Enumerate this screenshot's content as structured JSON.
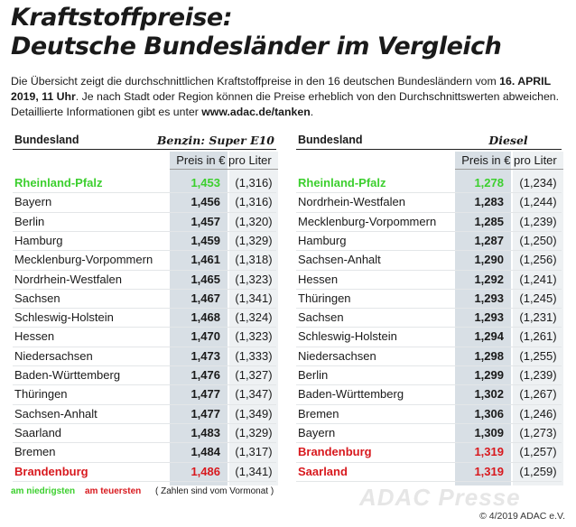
{
  "header": {
    "title": [
      "Kraftstoffpreise:",
      "Deutsche Bundesländer im Vergleich"
    ],
    "intro": [
      "Die Übersicht zeigt die durchschnittlichen Kraftstoffpreise in den 16 deutschen Bundesländern vom ",
      "16. APRIL 2019, 11 Uhr",
      ". Je nach Stadt oder Region können die Preise erheblich von den Durchschnittswerten abweichen. Detaillierte Informationen gibt es unter ",
      "www.adac.de/tanken",
      "."
    ]
  },
  "tables": [
    {
      "headers": [
        "Bundesland",
        "Benzin: Super E10"
      ],
      "unit": "Preis in € pro Liter",
      "rows": [
        [
          "Rheinland-Pfalz",
          "1,453",
          "(1,316)"
        ],
        [
          "Bayern",
          "1,456",
          "(1,316)"
        ],
        [
          "Berlin",
          "1,457",
          "(1,320)"
        ],
        [
          "Hamburg",
          "1,459",
          "(1,329)"
        ],
        [
          "Mecklenburg-Vorpommern",
          "1,461",
          "(1,318)"
        ],
        [
          "Nordrhein-Westfalen",
          "1,465",
          "(1,323)"
        ],
        [
          "Sachsen",
          "1,467",
          "(1,341)"
        ],
        [
          "Schleswig-Holstein",
          "1,468",
          "(1,324)"
        ],
        [
          "Hessen",
          "1,470",
          "(1,323)"
        ],
        [
          "Niedersachsen",
          "1,473",
          "(1,333)"
        ],
        [
          "Baden-Württemberg",
          "1,476",
          "(1,327)"
        ],
        [
          "Thüringen",
          "1,477",
          "(1,347)"
        ],
        [
          "Sachsen-Anhalt",
          "1,477",
          "(1,349)"
        ],
        [
          "Saarland",
          "1,483",
          "(1,329)"
        ],
        [
          "Bremen",
          "1,484",
          "(1,317)"
        ],
        [
          "Brandenburg",
          "1,486",
          "(1,341)"
        ]
      ]
    },
    {
      "headers": [
        "Bundesland",
        "Diesel"
      ],
      "unit": "Preis in € pro Liter",
      "rows": [
        [
          "Rheinland-Pfalz",
          "1,278",
          "(1,234)"
        ],
        [
          "Nordrhein-Westfalen",
          "1,283",
          "(1,244)"
        ],
        [
          "Mecklenburg-Vorpommern",
          "1,285",
          "(1,239)"
        ],
        [
          "Hamburg",
          "1,287",
          "(1,250)"
        ],
        [
          "Sachsen-Anhalt",
          "1,290",
          "(1,256)"
        ],
        [
          "Hessen",
          "1,292",
          "(1,241)"
        ],
        [
          "Thüringen",
          "1,293",
          "(1,245)"
        ],
        [
          "Sachsen",
          "1,293",
          "(1,231)"
        ],
        [
          "Schleswig-Holstein",
          "1,294",
          "(1,261)"
        ],
        [
          "Niedersachsen",
          "1,298",
          "(1,255)"
        ],
        [
          "Berlin",
          "1,299",
          "(1,239)"
        ],
        [
          "Baden-Württemberg",
          "1,302",
          "(1,267)"
        ],
        [
          "Bremen",
          "1,306",
          "(1,246)"
        ],
        [
          "Bayern",
          "1,309",
          "(1,273)"
        ],
        [
          "Brandenburg",
          "1,319",
          "(1,257)"
        ],
        [
          "Saarland",
          "1,319",
          "(1,259)"
        ]
      ]
    }
  ],
  "legend": [
    "am niedrigsten",
    "am teuersten",
    "( Zahlen sind vom Vormonat )"
  ],
  "footer": {
    "watermark": "ADAC Presse",
    "copyright": "© 4/2019 ADAC e.V."
  }
}
